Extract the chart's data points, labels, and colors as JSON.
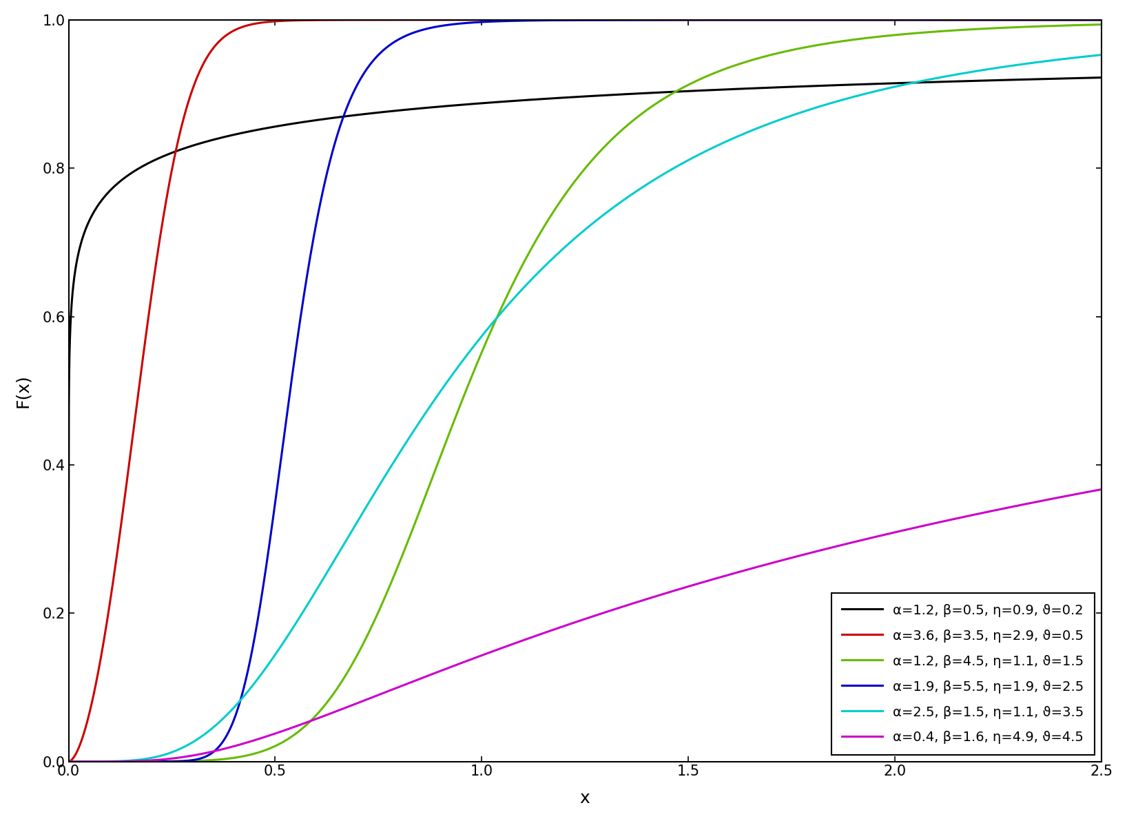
{
  "series": [
    {
      "alpha": 1.2,
      "beta": 0.5,
      "eta": 0.9,
      "vartheta": 0.2,
      "color": "#000000",
      "label": "α=1.2, β=0.5, η=0.9, ϑ=0.2"
    },
    {
      "alpha": 3.6,
      "beta": 3.5,
      "eta": 2.9,
      "vartheta": 0.5,
      "color": "#cc0000",
      "label": "α=3.6, β=3.5, η=2.9, ϑ=0.5"
    },
    {
      "alpha": 1.2,
      "beta": 4.5,
      "eta": 1.1,
      "vartheta": 1.5,
      "color": "#66bb00",
      "label": "α=1.2, β=4.5, η=1.1, ϑ=1.5"
    },
    {
      "alpha": 1.9,
      "beta": 5.5,
      "eta": 1.9,
      "vartheta": 2.5,
      "color": "#0000cc",
      "label": "α=1.9, β=5.5, η=1.9, ϑ=2.5"
    },
    {
      "alpha": 2.5,
      "beta": 1.5,
      "eta": 1.1,
      "vartheta": 3.5,
      "color": "#00cccc",
      "label": "α=2.5, β=1.5, η=1.1, ϑ=3.5"
    },
    {
      "alpha": 0.4,
      "beta": 1.6,
      "eta": 4.9,
      "vartheta": 4.5,
      "color": "#cc00cc",
      "label": "α=0.4, β=1.6, η=4.9, ϑ=4.5"
    }
  ],
  "xmin": 0.0,
  "xmax": 2.5,
  "ymin": 0.0,
  "ymax": 1.0,
  "xlabel": "x",
  "ylabel": "F(x)",
  "xticks": [
    0.0,
    0.5,
    1.0,
    1.5,
    2.0,
    2.5
  ],
  "yticks": [
    0.0,
    0.2,
    0.4,
    0.6,
    0.8,
    1.0
  ],
  "linewidth": 2.2,
  "background_color": "#ffffff",
  "legend_loc": "lower right",
  "legend_fontsize": 14,
  "axis_label_fontsize": 18,
  "tick_fontsize": 15
}
